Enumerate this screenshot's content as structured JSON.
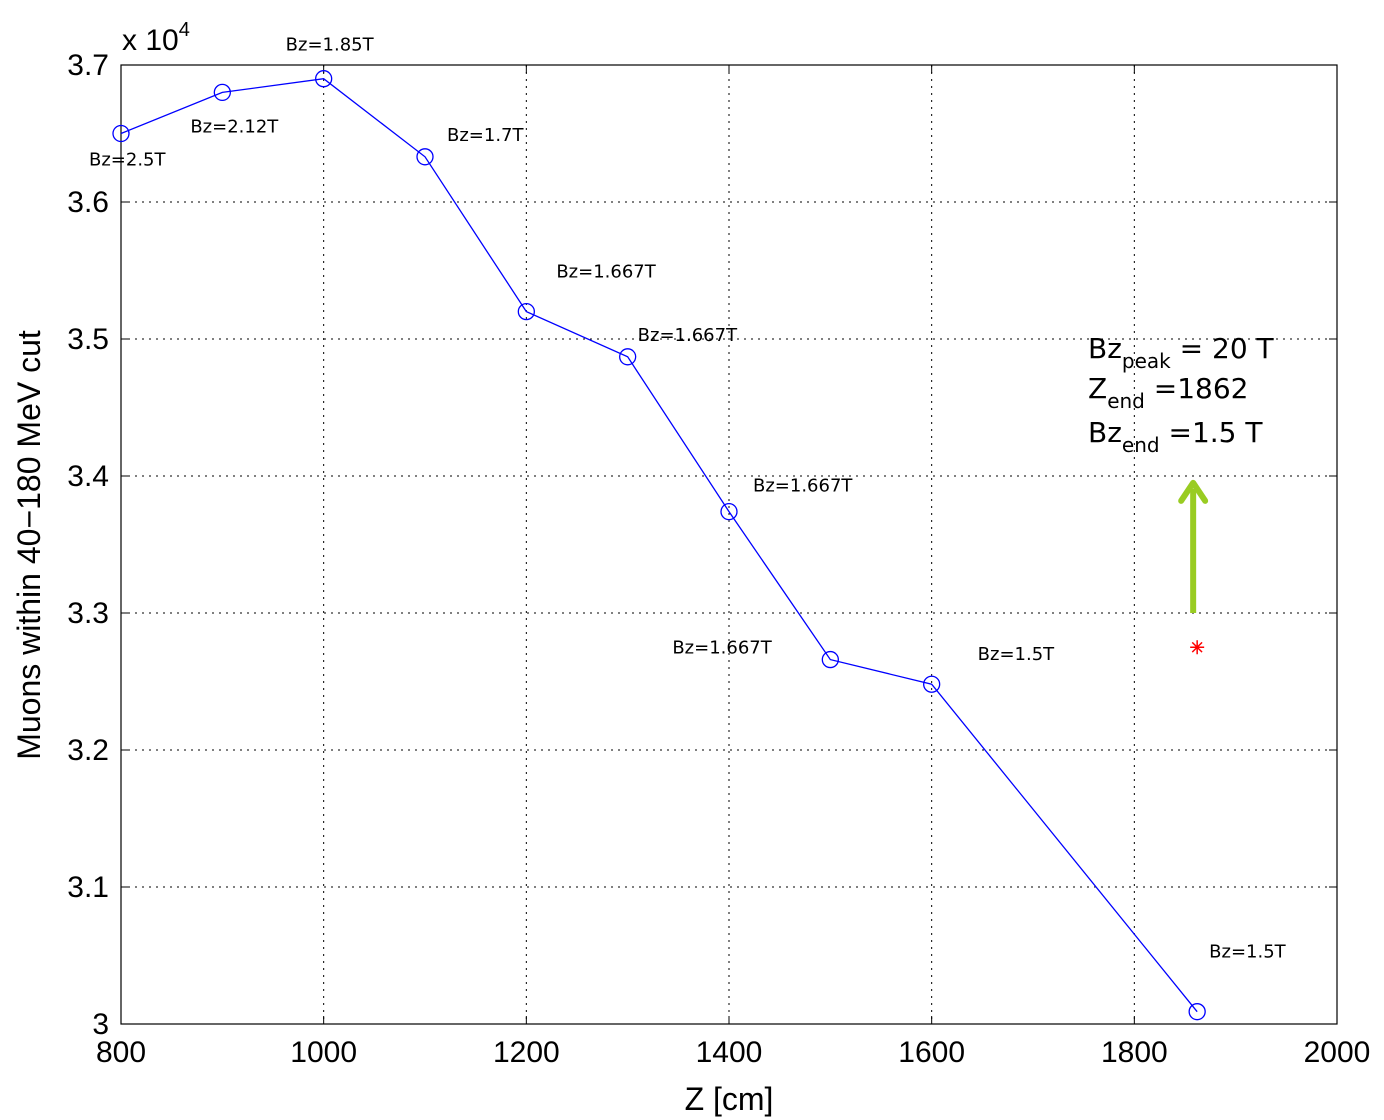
{
  "chart_data": {
    "type": "line",
    "xlabel": "Z [cm]",
    "ylabel": "Muons within 40−180 MeV cut",
    "y_multiplier_label": "x 10",
    "y_multiplier_exp": "4",
    "xlim": [
      800,
      2000
    ],
    "ylim": [
      3.0,
      3.7
    ],
    "xticks": [
      800,
      1000,
      1200,
      1400,
      1600,
      1800,
      2000
    ],
    "yticks": [
      3,
      3.1,
      3.2,
      3.3,
      3.4,
      3.5,
      3.6,
      3.7
    ],
    "ytick_labels": [
      "3",
      "3.1",
      "3.2",
      "3.3",
      "3.4",
      "3.5",
      "3.6",
      "3.7"
    ],
    "grid": true,
    "series": [
      {
        "color": "#0000ff",
        "marker": "circle",
        "x": [
          800,
          900,
          1000,
          1100,
          1200,
          1300,
          1400,
          1500,
          1600,
          1862
        ],
        "y": [
          3.65,
          3.68,
          3.69,
          3.633,
          3.52,
          3.487,
          3.374,
          3.266,
          3.248,
          3.009
        ],
        "labels": [
          "Bz=2.5T",
          "Bz=2.12T",
          "Bz=1.85T",
          "Bz=1.7T",
          "Bz=1.667T",
          "Bz=1.667T",
          "Bz=1.667T",
          "Bz=1.667T",
          "Bz=1.5T",
          "Bz=1.5T"
        ]
      }
    ],
    "special_point": {
      "x": 1862,
      "y": 3.275,
      "marker": "asterisk",
      "color": "#ff0000"
    },
    "arrow": {
      "x": 1862,
      "y_from": 3.3,
      "y_to": 3.395,
      "color": "#99cc22"
    },
    "annotation": {
      "line1_main": "Bz",
      "line1_sub": "peak",
      "line1_rest": " = 20 T",
      "line2_main": "Z",
      "line2_sub": "end",
      "line2_rest": " =1862",
      "line3_main": "Bz",
      "line3_sub": "end",
      "line3_rest": " =1.5 T"
    }
  }
}
